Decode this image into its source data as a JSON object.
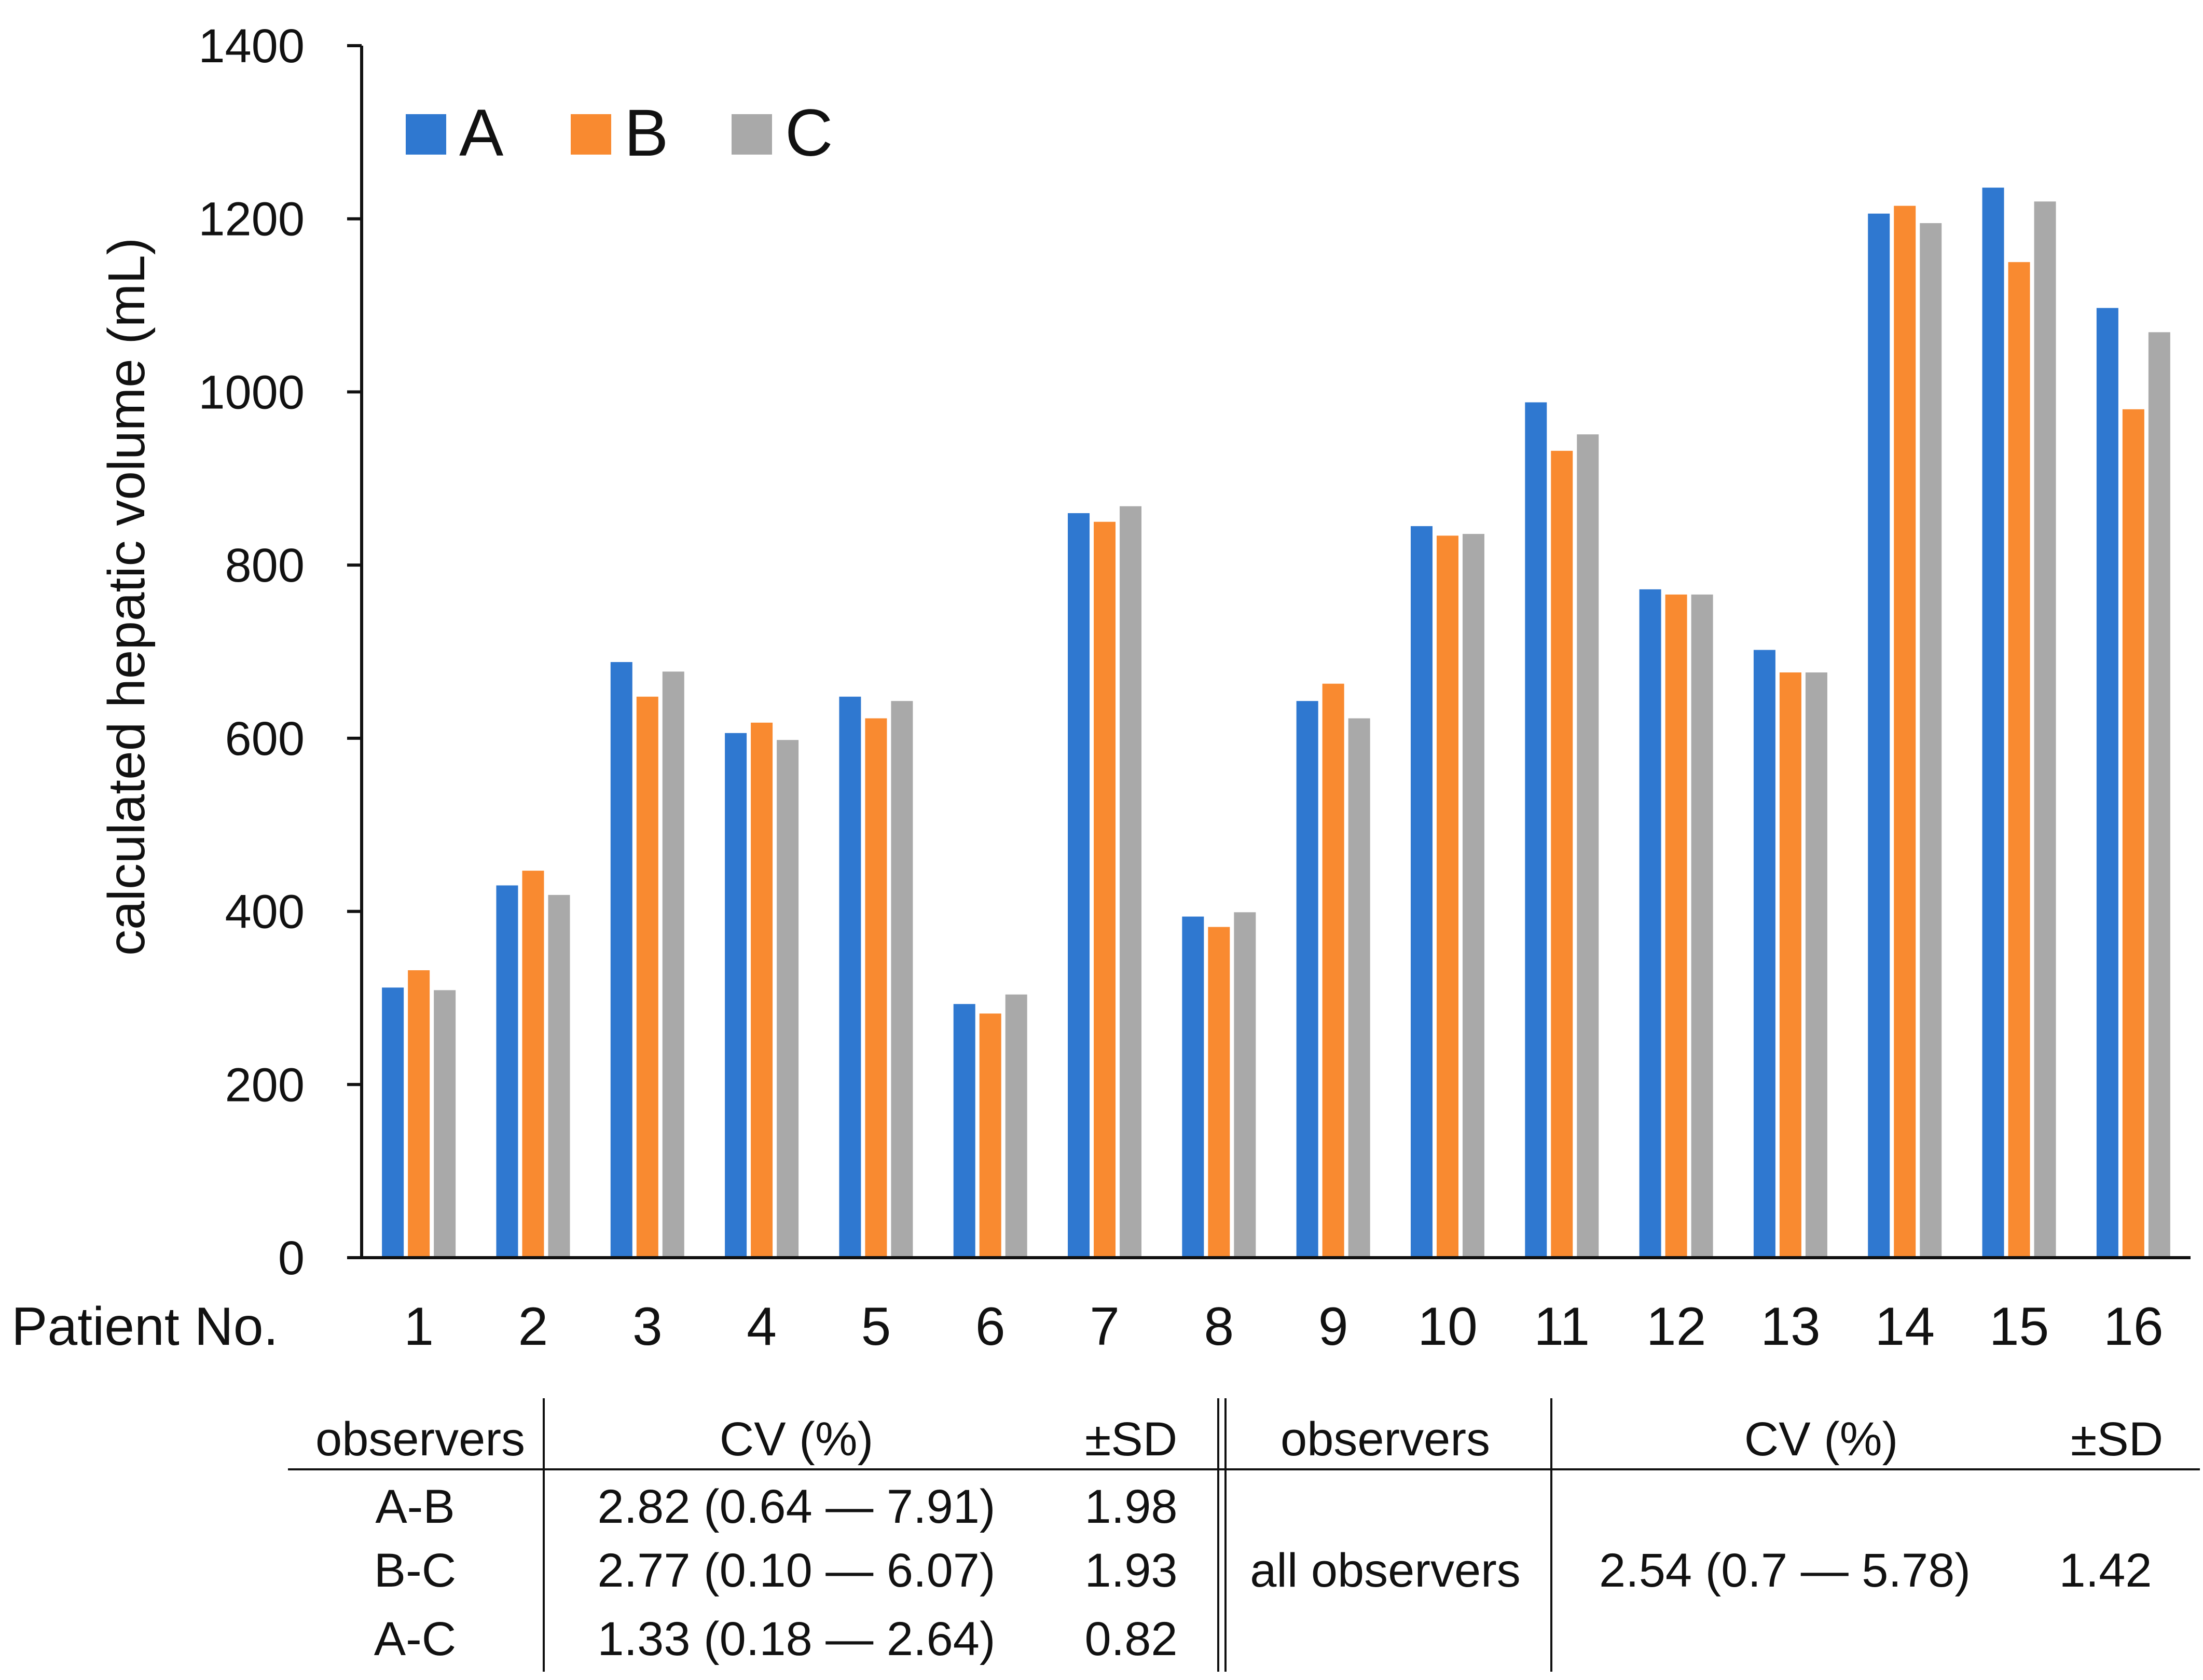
{
  "chart_data": {
    "type": "bar",
    "title": "",
    "xlabel": "Patient No.",
    "ylabel": "calculated hepatic volume (mL)",
    "ylim": [
      0,
      1400
    ],
    "yticks": [
      "0",
      "200",
      "400",
      "600",
      "800",
      "1000",
      "1200",
      "1400"
    ],
    "categories": [
      "1",
      "2",
      "3",
      "4",
      "5",
      "6",
      "7",
      "8",
      "9",
      "10",
      "11",
      "12",
      "13",
      "14",
      "15",
      "16"
    ],
    "legend_position": "top-left",
    "series": [
      {
        "name": "A",
        "color": "#2f78d0",
        "values": [
          312,
          430,
          688,
          606,
          648,
          293,
          860,
          394,
          643,
          845,
          988,
          772,
          702,
          1206,
          1236,
          1097
        ]
      },
      {
        "name": "B",
        "color": "#f98a30",
        "values": [
          332,
          447,
          648,
          618,
          623,
          282,
          850,
          382,
          663,
          834,
          932,
          766,
          676,
          1215,
          1150,
          980
        ]
      },
      {
        "name": "C",
        "color": "#a9a9a9",
        "values": [
          309,
          419,
          677,
          598,
          643,
          304,
          868,
          399,
          623,
          836,
          951,
          766,
          676,
          1195,
          1220,
          1069
        ]
      }
    ]
  },
  "table": {
    "headers": {
      "observers": "observers",
      "cv": "CV (%)",
      "sd": "±SD",
      "observers2": "observers",
      "cv2": "CV (%)",
      "sd2": "±SD"
    },
    "rows": [
      {
        "pair": "A-B",
        "cv": "2.82 (0.64 — 7.91)",
        "sd": "1.98"
      },
      {
        "pair": "B-C",
        "cv": "2.77  (0.10 — 6.07)",
        "sd": "1.93"
      },
      {
        "pair": "A-C",
        "cv": "1.33 (0.18 — 2.64)",
        "sd": "0.82"
      }
    ],
    "all": {
      "label": "all observers",
      "cv": "2.54 (0.7 — 5.78)",
      "sd": "1.42"
    }
  }
}
